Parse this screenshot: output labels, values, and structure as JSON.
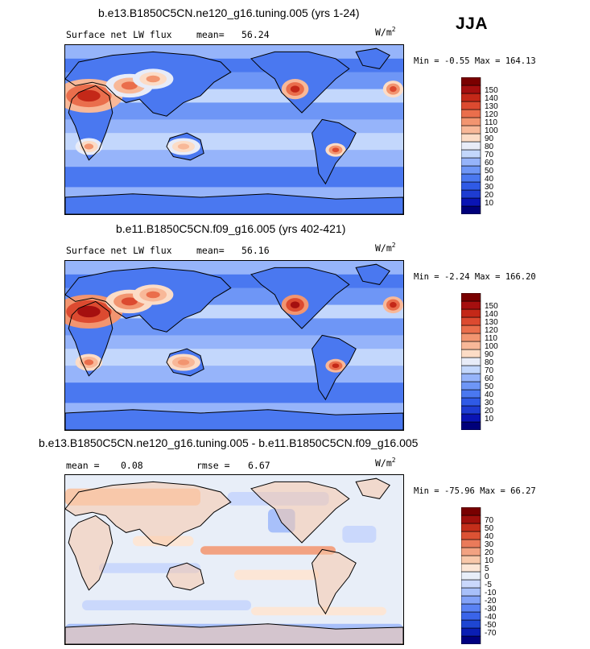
{
  "season": "JJA",
  "units_base": "W/m",
  "units_exp": "2",
  "colors": {
    "abs_scale": [
      "#00007a",
      "#0a14b4",
      "#1e3cd2",
      "#2f5ae6",
      "#4a78f0",
      "#6e96f6",
      "#96b4fa",
      "#c3d7fc",
      "#e8ecf8",
      "#fcdcc6",
      "#f8b898",
      "#f29570",
      "#ea6e4c",
      "#dc4a30",
      "#c42818",
      "#a50f0f",
      "#7a0000"
    ],
    "diff_scale": [
      "#000080",
      "#0a1eb4",
      "#1e46d2",
      "#3a64ea",
      "#5a82f4",
      "#82a2f8",
      "#a8c0fa",
      "#cad8fc",
      "#e8eef8",
      "#fce6d6",
      "#f8c8aa",
      "#f2a282",
      "#ea7a5a",
      "#dc5234",
      "#c42e1a",
      "#a0100c",
      "#780000"
    ],
    "coast": "#000000"
  },
  "panels": [
    {
      "id": "model-a",
      "title": "b.e13.B1850C5CN.ne120_g16.tuning.005 (yrs 1-24)",
      "variable": "Surface net LW flux",
      "stat1_label": "mean=",
      "stat1_value": "56.24",
      "min_label": "Min =",
      "min_value": "-0.55",
      "max_label": "Max =",
      "max_value": "164.13"
    },
    {
      "id": "model-b",
      "title": "b.e11.B1850C5CN.f09_g16.005 (yrs 402-421)",
      "variable": "Surface net LW flux",
      "stat1_label": "mean=",
      "stat1_value": "56.16",
      "min_label": "Min =",
      "min_value": "-2.24",
      "max_label": "Max =",
      "max_value": "166.20"
    },
    {
      "id": "difference",
      "title": "b.e13.B1850C5CN.ne120_g16.tuning.005 - b.e11.B1850C5CN.f09_g16.005",
      "stat1_label": "mean =",
      "stat1_value": "0.08",
      "stat2_label": "rmse =",
      "stat2_value": "6.67",
      "min_label": "Min =",
      "min_value": "-75.96",
      "max_label": "Max =",
      "max_value": "66.27"
    }
  ],
  "chart_data": [
    {
      "type": "heatmap",
      "title": "b.e13.B1850C5CN.ne120_g16.tuning.005 (yrs 1-24)",
      "variable": "Surface net LW flux",
      "units": "W/m2",
      "mean": 56.24,
      "min": -0.55,
      "max": 164.13,
      "colorbar_levels": [
        10,
        20,
        30,
        40,
        50,
        60,
        70,
        80,
        90,
        100,
        110,
        120,
        130,
        140,
        150
      ]
    },
    {
      "type": "heatmap",
      "title": "b.e11.B1850C5CN.f09_g16.005 (yrs 402-421)",
      "variable": "Surface net LW flux",
      "units": "W/m2",
      "mean": 56.16,
      "min": -2.24,
      "max": 166.2,
      "colorbar_levels": [
        10,
        20,
        30,
        40,
        50,
        60,
        70,
        80,
        90,
        100,
        110,
        120,
        130,
        140,
        150
      ]
    },
    {
      "type": "heatmap",
      "title": "b.e13.B1850C5CN.ne120_g16.tuning.005 - b.e11.B1850C5CN.f09_g16.005",
      "units": "W/m2",
      "mean": 0.08,
      "rmse": 6.67,
      "min": -75.96,
      "max": 66.27,
      "colorbar_levels": [
        -70,
        -50,
        -40,
        -30,
        -20,
        -10,
        -5,
        0,
        5,
        10,
        20,
        30,
        40,
        50,
        70
      ]
    }
  ]
}
